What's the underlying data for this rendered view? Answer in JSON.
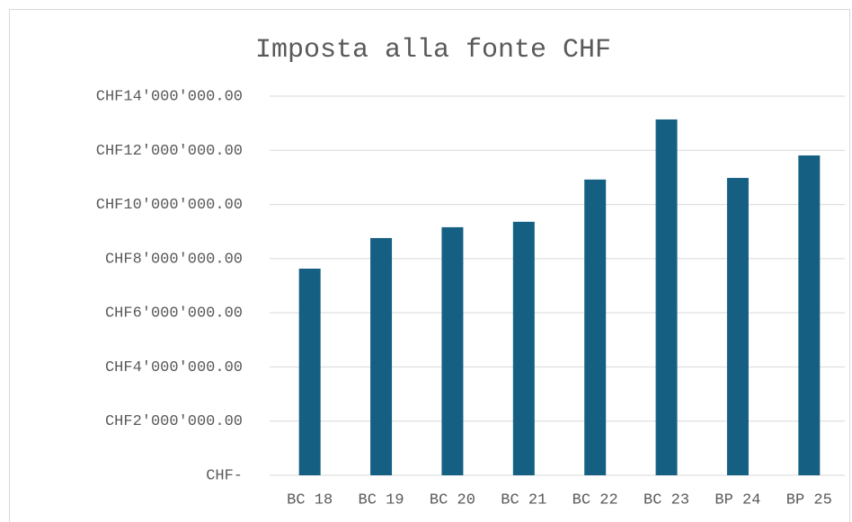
{
  "chart_data": {
    "type": "bar",
    "title": "Imposta alla fonte CHF",
    "categories": [
      "BC 18",
      "BC 19",
      "BC 20",
      "BC 21",
      "BC 22",
      "BC 23",
      "BP 24",
      "BP 25"
    ],
    "values": [
      7630000,
      8760000,
      9160000,
      9360000,
      10920000,
      13140000,
      10980000,
      11810000
    ],
    "color": "#156082",
    "ylim": [
      0,
      14000000
    ],
    "yticks": [
      {
        "value": 0,
        "label": "CHF-"
      },
      {
        "value": 2000000,
        "label": "CHF2'000'000.00"
      },
      {
        "value": 4000000,
        "label": "CHF4'000'000.00"
      },
      {
        "value": 6000000,
        "label": "CHF6'000'000.00"
      },
      {
        "value": 8000000,
        "label": "CHF8'000'000.00"
      },
      {
        "value": 10000000,
        "label": "CHF10'000'000.00"
      },
      {
        "value": 12000000,
        "label": "CHF12'000'000.00"
      },
      {
        "value": 14000000,
        "label": "CHF14'000'000.00"
      }
    ],
    "grid": true
  }
}
